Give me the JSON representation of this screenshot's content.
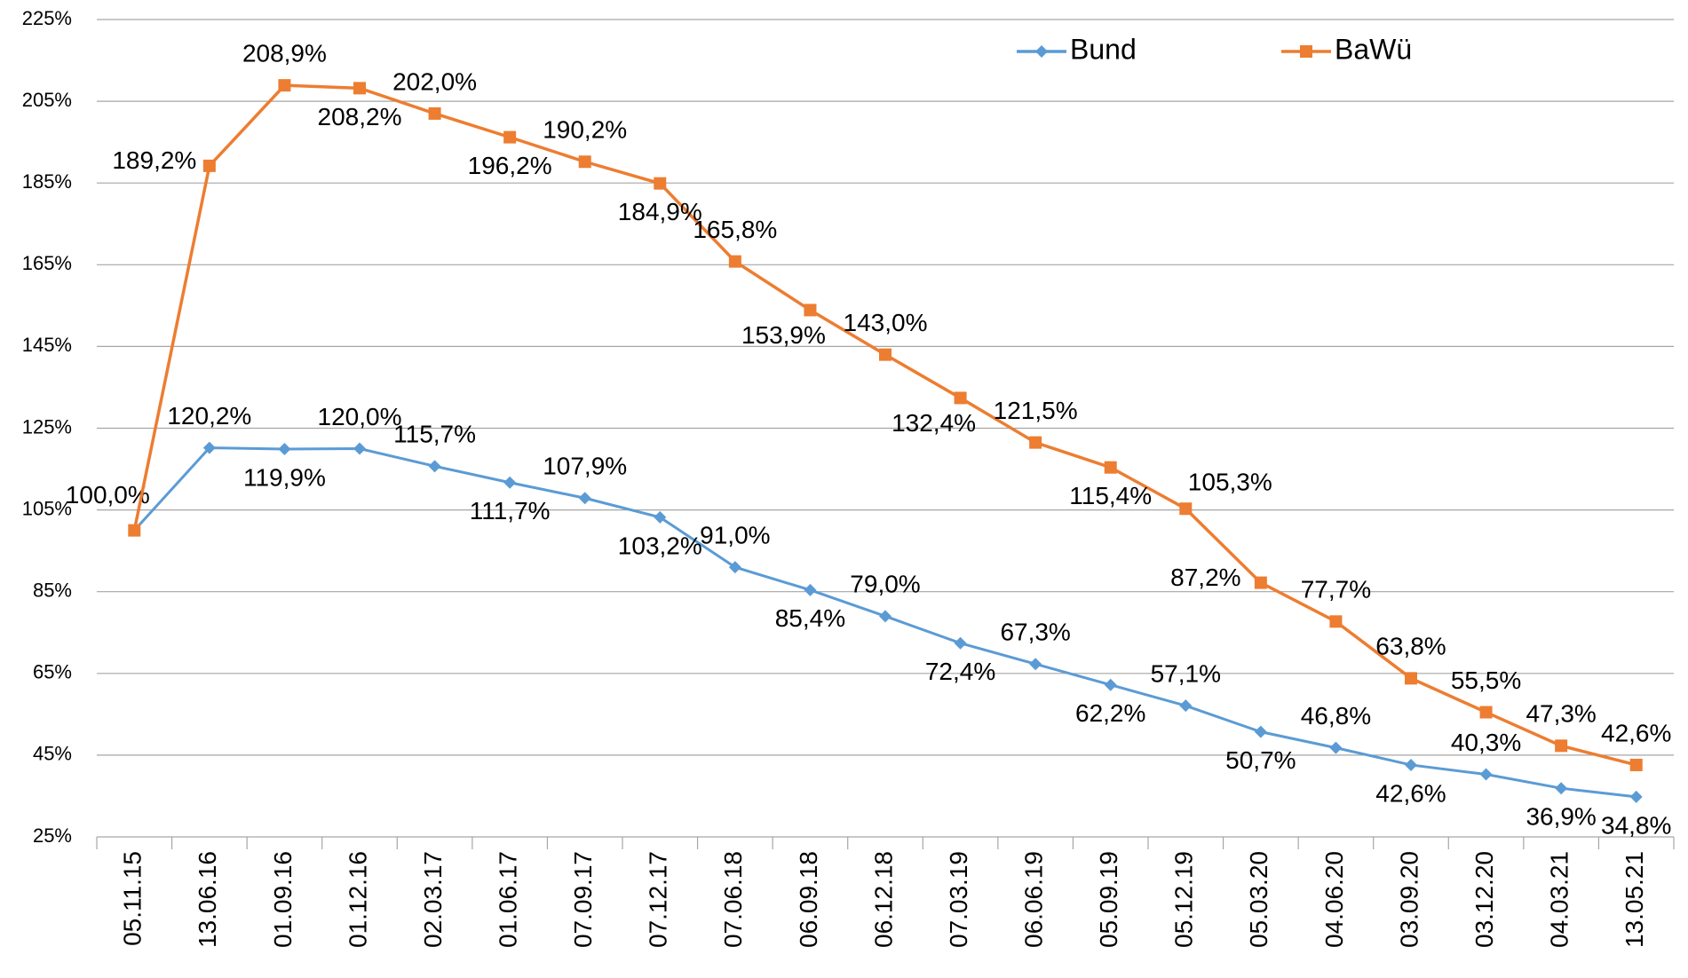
{
  "chart_data": {
    "type": "line",
    "categories": [
      "05.11.15",
      "13.06.16",
      "01.09.16",
      "01.12.16",
      "02.03.17",
      "01.06.17",
      "07.09.17",
      "07.12.17",
      "07.06.18",
      "06.09.18",
      "06.12.18",
      "07.03.19",
      "06.06.19",
      "05.09.19",
      "05.12.19",
      "05.03.20",
      "04.06.20",
      "03.09.20",
      "03.12.20",
      "04.03.21",
      "13.05.21"
    ],
    "series": [
      {
        "name": "Bund",
        "color": "#5b9bd5",
        "marker": "diamond",
        "values": [
          100.0,
          120.2,
          119.9,
          120.0,
          115.7,
          111.7,
          107.9,
          103.2,
          91.0,
          85.4,
          79.0,
          72.4,
          67.3,
          62.2,
          57.1,
          50.7,
          46.8,
          42.6,
          40.3,
          36.9,
          34.8
        ],
        "value_labels": [
          "100,0%",
          "120,2%",
          "119,9%",
          "120,0%",
          "115,7%",
          "111,7%",
          "107,9%",
          "103,2%",
          "91,0%",
          "85,4%",
          "79,0%",
          "72,4%",
          "67,3%",
          "62,2%",
          "57,1%",
          "50,7%",
          "46,8%",
          "42,6%",
          "40,3%",
          "36,9%",
          "34,8%"
        ]
      },
      {
        "name": "BaWü",
        "color": "#ed7d31",
        "marker": "square",
        "values": [
          100.0,
          189.2,
          208.9,
          208.2,
          202.0,
          196.2,
          190.2,
          184.9,
          165.8,
          153.9,
          143.0,
          132.4,
          121.5,
          115.4,
          105.3,
          87.2,
          77.7,
          63.8,
          55.5,
          47.3,
          42.6
        ],
        "value_labels": [
          null,
          "189,2%",
          "208,9%",
          "208,2%",
          "202,0%",
          "196,2%",
          "190,2%",
          "184,9%",
          "165,8%",
          "153,9%",
          "143,0%",
          "132,4%",
          "121,5%",
          "115,4%",
          "105,3%",
          "87,2%",
          "77,7%",
          "63,8%",
          "55,5%",
          "47,3%",
          "42,6%"
        ]
      }
    ],
    "ylim": [
      25,
      225
    ],
    "yticks": [
      {
        "value": 25,
        "label": "25%"
      },
      {
        "value": 45,
        "label": "45%"
      },
      {
        "value": 65,
        "label": "65%"
      },
      {
        "value": 85,
        "label": "85%"
      },
      {
        "value": 105,
        "label": "105%"
      },
      {
        "value": 125,
        "label": "125%"
      },
      {
        "value": 145,
        "label": "145%"
      },
      {
        "value": 165,
        "label": "165%"
      },
      {
        "value": 185,
        "label": "185%"
      },
      {
        "value": 205,
        "label": "205%"
      },
      {
        "value": 225,
        "label": "225%"
      }
    ],
    "grid": true,
    "legend": "top-right"
  }
}
